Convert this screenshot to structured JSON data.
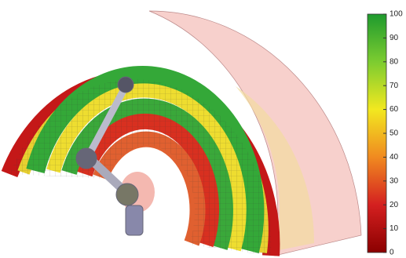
{
  "colorbar": {
    "range": [
      0,
      100
    ],
    "ticks": [
      0,
      10,
      20,
      30,
      40,
      50,
      60,
      70,
      80,
      90,
      100
    ]
  }
}
